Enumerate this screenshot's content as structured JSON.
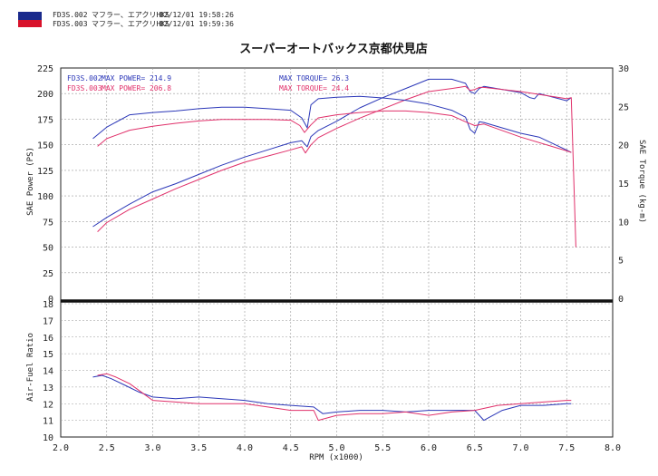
{
  "header": {
    "logo_colors": {
      "top": "#1a2a8c",
      "bottom": "#d8122a"
    },
    "runs": [
      {
        "id": "FD3S.002",
        "desc": "マフラー、エアクリHKS",
        "datetime": "02/12/01 19:58:26"
      },
      {
        "id": "FD3S.003",
        "desc": "マフラー、エアクリHKS",
        "datetime": "02/12/01 19:59:36"
      }
    ]
  },
  "chart_data": [
    {
      "type": "line",
      "title": "スーパーオートバックス京都伏見店",
      "xlabel": "RPM (x1000)",
      "ylabel": "SAE Power (PS)",
      "y2label": "SAE Torque (kg-m)",
      "xlim": [
        2.0,
        8.0
      ],
      "ylim": [
        0,
        225
      ],
      "y2lim": [
        0,
        30
      ],
      "xticks": [
        "2.0",
        "2.5",
        "3.0",
        "3.5",
        "4.0",
        "4.5",
        "5.0",
        "5.5",
        "6.0",
        "6.5",
        "7.0",
        "7.5",
        "8.0"
      ],
      "yticks": [
        "0",
        "25",
        "50",
        "75",
        "100",
        "125",
        "150",
        "175",
        "200",
        "225"
      ],
      "y2ticks": [
        "0",
        "5",
        "10",
        "15",
        "20",
        "25",
        "30"
      ],
      "grid": true,
      "legend": [
        {
          "run": "FD3S.002",
          "power_label": "MAX POWER= 214.9",
          "torque_label": "MAX TORQUE= 26.3",
          "color": "#2b37b8"
        },
        {
          "run": "FD3S.003",
          "power_label": "MAX POWER= 206.8",
          "torque_label": "MAX TORQUE= 24.4",
          "color": "#e0306a"
        }
      ],
      "series": [
        {
          "name": "FD3S.002",
          "kind": "power",
          "color": "#2b37b8",
          "x": [
            2.35,
            2.5,
            2.75,
            3.0,
            3.25,
            3.5,
            3.75,
            4.0,
            4.25,
            4.5,
            4.62,
            4.68,
            4.72,
            4.8,
            5.0,
            5.25,
            5.5,
            5.75,
            6.0,
            6.25,
            6.4,
            6.45,
            6.5,
            6.55,
            6.6,
            7.0,
            7.1,
            7.15,
            7.2,
            7.5,
            7.55
          ],
          "y": [
            70,
            79,
            92,
            104,
            112,
            121,
            130,
            138,
            145,
            152,
            154,
            148,
            158,
            164,
            173,
            186,
            196,
            205,
            214,
            214,
            210,
            202,
            200,
            205,
            207,
            201,
            196,
            195,
            200,
            193,
            196
          ]
        },
        {
          "name": "FD3S.003",
          "kind": "power",
          "color": "#e0306a",
          "x": [
            2.4,
            2.5,
            2.75,
            3.0,
            3.25,
            3.5,
            3.75,
            4.0,
            4.25,
            4.5,
            4.62,
            4.66,
            4.72,
            4.8,
            5.0,
            5.25,
            5.5,
            5.75,
            6.0,
            6.25,
            6.4,
            6.45,
            6.5,
            6.55,
            6.6,
            7.0,
            7.5,
            7.55,
            7.6
          ],
          "y": [
            65,
            74,
            87,
            97,
            107,
            116,
            125,
            133,
            139,
            145,
            148,
            142,
            150,
            157,
            166,
            176,
            185,
            194,
            202,
            205,
            207,
            203,
            204,
            206,
            206,
            202,
            195,
            196,
            50
          ]
        },
        {
          "name": "FD3S.002",
          "kind": "torque",
          "color": "#2b37b8",
          "x": [
            2.35,
            2.5,
            2.75,
            3.0,
            3.25,
            3.5,
            3.75,
            4.0,
            4.25,
            4.5,
            4.62,
            4.68,
            4.72,
            4.8,
            5.0,
            5.25,
            5.5,
            5.75,
            6.0,
            6.25,
            6.4,
            6.45,
            6.5,
            6.55,
            6.6,
            7.0,
            7.2,
            7.5,
            7.55
          ],
          "y": [
            20.8,
            22.3,
            23.9,
            24.2,
            24.4,
            24.7,
            24.9,
            24.9,
            24.7,
            24.5,
            23.5,
            22.2,
            25.2,
            26.0,
            26.2,
            26.3,
            26.1,
            25.8,
            25.3,
            24.5,
            23.6,
            22.0,
            21.5,
            23.0,
            22.9,
            21.5,
            21.0,
            19.3,
            19.0
          ]
        },
        {
          "name": "FD3S.003",
          "kind": "torque",
          "color": "#e0306a",
          "x": [
            2.4,
            2.5,
            2.75,
            3.0,
            3.25,
            3.5,
            3.75,
            4.0,
            4.25,
            4.5,
            4.6,
            4.65,
            4.72,
            4.8,
            5.0,
            5.25,
            5.5,
            5.75,
            6.0,
            6.25,
            6.4,
            6.5,
            6.6,
            7.0,
            7.5,
            7.55
          ],
          "y": [
            19.8,
            20.8,
            21.9,
            22.4,
            22.8,
            23.1,
            23.3,
            23.3,
            23.3,
            23.2,
            22.5,
            21.6,
            22.6,
            23.5,
            23.9,
            24.2,
            24.4,
            24.4,
            24.2,
            23.8,
            23.0,
            22.5,
            22.7,
            21.0,
            19.2,
            19.0
          ]
        }
      ]
    },
    {
      "type": "line",
      "xlabel": "RPM (x1000)",
      "ylabel": "Air-Fuel Ratio",
      "xlim": [
        2.0,
        8.0
      ],
      "ylim": [
        10,
        18
      ],
      "xticks": [
        "2.0",
        "2.5",
        "3.0",
        "3.5",
        "4.0",
        "4.5",
        "5.0",
        "5.5",
        "6.0",
        "6.5",
        "7.0",
        "7.5",
        "8.0"
      ],
      "yticks": [
        "10",
        "11",
        "12",
        "13",
        "14",
        "15",
        "16",
        "17",
        "18"
      ],
      "grid": true,
      "series": [
        {
          "name": "FD3S.002",
          "color": "#2b37b8",
          "x": [
            2.35,
            2.45,
            2.55,
            2.7,
            2.85,
            3.0,
            3.25,
            3.5,
            3.75,
            4.0,
            4.25,
            4.5,
            4.75,
            4.85,
            5.0,
            5.25,
            5.5,
            5.75,
            6.0,
            6.25,
            6.5,
            6.6,
            6.7,
            6.8,
            7.0,
            7.25,
            7.5,
            7.55
          ],
          "y": [
            13.6,
            13.7,
            13.5,
            13.1,
            12.7,
            12.4,
            12.3,
            12.4,
            12.3,
            12.2,
            12.0,
            11.9,
            11.8,
            11.4,
            11.5,
            11.6,
            11.6,
            11.5,
            11.6,
            11.6,
            11.6,
            11.0,
            11.3,
            11.6,
            11.9,
            11.9,
            12.0,
            12.0
          ]
        },
        {
          "name": "FD3S.003",
          "color": "#e0306a",
          "x": [
            2.4,
            2.5,
            2.6,
            2.75,
            2.9,
            3.0,
            3.25,
            3.5,
            3.75,
            4.0,
            4.25,
            4.5,
            4.75,
            4.8,
            5.0,
            5.25,
            5.5,
            5.75,
            6.0,
            6.25,
            6.5,
            6.75,
            7.0,
            7.25,
            7.5,
            7.55
          ],
          "y": [
            13.7,
            13.8,
            13.6,
            13.2,
            12.6,
            12.2,
            12.1,
            12.0,
            12.0,
            12.0,
            11.8,
            11.6,
            11.6,
            11.0,
            11.3,
            11.4,
            11.4,
            11.5,
            11.3,
            11.5,
            11.6,
            11.9,
            12.0,
            12.1,
            12.2,
            12.2
          ]
        }
      ]
    }
  ]
}
